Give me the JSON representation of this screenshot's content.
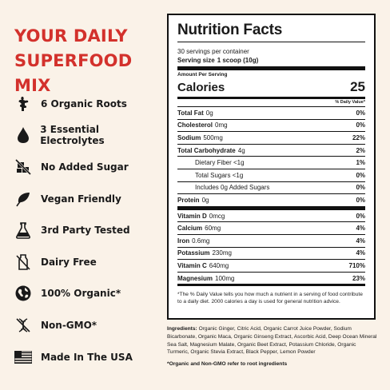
{
  "headline": {
    "line1": "YOUR DAILY",
    "line2": "SUPERFOOD MIX"
  },
  "features": [
    {
      "icon": "ginger-root-icon",
      "label": "6 Organic Roots"
    },
    {
      "icon": "drop-icon",
      "label": "3 Essential Electrolytes"
    },
    {
      "icon": "no-sugar-icon",
      "label": "No Added Sugar"
    },
    {
      "icon": "leaf-icon",
      "label": "Vegan Friendly"
    },
    {
      "icon": "flask-icon",
      "label": "3rd Party Tested"
    },
    {
      "icon": "no-dairy-icon",
      "label": "Dairy Free"
    },
    {
      "icon": "globe-icon",
      "label": "100% Organic*"
    },
    {
      "icon": "no-gmo-icon",
      "label": "Non-GMO*"
    },
    {
      "icon": "usa-flag-icon",
      "label": "Made In The USA"
    }
  ],
  "nutrition": {
    "title": "Nutrition Facts",
    "servings": "30 servings per container",
    "serving_size_label": "Serving size",
    "serving_size_value": "1 scoop (10g)",
    "amount_per_serving": "Amount Per Serving",
    "calories_label": "Calories",
    "calories_value": "25",
    "dv_header": "% Daily Value*",
    "rows": [
      {
        "name": "Total Fat",
        "amount": "0g",
        "dv": "0%"
      },
      {
        "name": "Cholesterol",
        "amount": "0mg",
        "dv": "0%"
      },
      {
        "name": "Sodium",
        "amount": "500mg",
        "dv": "22%"
      },
      {
        "name": "Total Carbohydrate",
        "amount": "4g",
        "dv": "2%"
      },
      {
        "name": "Dietary Fiber <1g",
        "amount": "",
        "dv": "1%"
      },
      {
        "name": "Total Sugars <1g",
        "amount": "",
        "dv": "0%"
      },
      {
        "name": "Includes 0g Added Sugars",
        "amount": "",
        "dv": "0%"
      },
      {
        "name": "Protein",
        "amount": "0g",
        "dv": "0%"
      },
      {
        "name": "Vitamin D",
        "amount": "0mcg",
        "dv": "0%"
      },
      {
        "name": "Calcium",
        "amount": "60mg",
        "dv": "4%"
      },
      {
        "name": "Iron",
        "amount": "0.6mg",
        "dv": "4%"
      },
      {
        "name": "Potassium",
        "amount": "230mg",
        "dv": "4%"
      },
      {
        "name": "Vitamin C",
        "amount": "640mg",
        "dv": "710%"
      },
      {
        "name": "Magnesium",
        "amount": "100mg",
        "dv": "23%"
      }
    ],
    "footnote": "*The % Daily Value tells you how much a nutrient in a serving of food contribute to a daily diet. 2000 calories a day is used for general nutrition advice."
  },
  "ingredients": {
    "label": "Ingredients:",
    "text": "Organic Ginger, Citric Acid, Organic Carrot Juice Powder, Sodium Bicarbonate, Organic Maca, Organic Ginseng Extract, Ascorbic Acid, Deep Ocean Mineral Sea Salt, Magnesium Malate, Organic Beet Extract, Potassium Chloride, Organic Turmeric, Organic Stevia Extract, Black Pepper, Lemon Powder"
  },
  "note": "*Organic and Non-GMO refer to root ingredients",
  "colors": {
    "accent": "#d3312c",
    "background": "#faf2e8"
  }
}
